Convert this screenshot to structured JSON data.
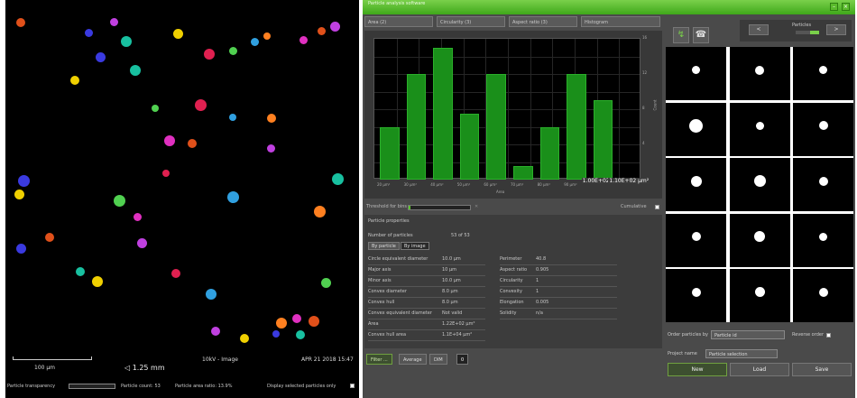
{
  "left_image": {
    "scale_label": "100 µm",
    "zoom": "◁ 1.25 mm",
    "magnification": "10kV - Image",
    "date": "APR 21 2018 15:47",
    "transparency_label": "Particle transparency",
    "particle_count": "Particle count: 53",
    "area_ratio": "Particle area ratio: 13.9%",
    "display_selected": "Display selected particles only",
    "particle_colors": [
      "#e0501a",
      "#c040e0",
      "#3a3ae0",
      "#18c0a0",
      "#f0d000",
      "#e02050",
      "#50d050",
      "#30a0e0",
      "#ff8020",
      "#e030c0"
    ]
  },
  "app": {
    "title": "Particle analysis software",
    "minimize": "–",
    "close": "×"
  },
  "dropdowns": [
    "Area (2)",
    "Circularity (3)",
    "Aspect ratio (3)",
    "Histogram"
  ],
  "chart_data": {
    "type": "bar",
    "categories": [
      "20 µm²",
      "30 µm²",
      "40 µm²",
      "50 µm²",
      "60 µm²",
      "70 µm²",
      "80 µm²",
      "90 µm²",
      "1.00E+02 µm²",
      "1.10E+02 µm²"
    ],
    "values": [
      6,
      12,
      15,
      7.5,
      12,
      1.5,
      6,
      12,
      9,
      0
    ],
    "ylim": [
      0,
      16
    ],
    "yticks": [
      4,
      8,
      12,
      16
    ],
    "xlabel": "Area",
    "ylabel": "Count",
    "highlighted_labels": [
      "1.00E+02 µm²",
      "1.10E+02 µm²"
    ],
    "grid": true
  },
  "toolbar": {
    "threshold_label": "Threshold for bins",
    "progress": 0.03,
    "cumulative_label": "Cumulative"
  },
  "particle_info": {
    "title": "Particle properties",
    "count_label": "Number of particles",
    "count_value": "53 of 53",
    "tabs": [
      "By particle",
      "By image"
    ],
    "left_rows": [
      {
        "label": "Circle equivalent diameter",
        "value": "10.0 µm"
      },
      {
        "label": "Major axis",
        "value": "10 µm"
      },
      {
        "label": "Minor axis",
        "value": "10.0 µm"
      },
      {
        "label": "Convex diameter",
        "value": "8.0 µm"
      },
      {
        "label": "Convex hull",
        "value": "8.0 µm"
      },
      {
        "label": "Convex equivalent diameter",
        "value": "Not valid"
      },
      {
        "label": "Area",
        "value": "1.22E+02 µm²"
      },
      {
        "label": "Convex hull area",
        "value": "1.1E+04 µm²"
      }
    ],
    "right_rows": [
      {
        "label": "Perimeter",
        "value": "40.8"
      },
      {
        "label": "Aspect ratio",
        "value": "0.905"
      },
      {
        "label": "Circularity",
        "value": "1"
      },
      {
        "label": "Convexity",
        "value": "1"
      },
      {
        "label": "Elongation",
        "value": "0.005"
      },
      {
        "label": "Solidity",
        "value": "n/a"
      }
    ]
  },
  "bottom_buttons": {
    "filter": "Filter ...",
    "average": "Average",
    "dim": "DIM",
    "value": "0"
  },
  "thumbnails": {
    "dot_sizes": [
      9,
      10,
      9,
      15,
      9,
      10,
      12,
      13,
      10,
      10,
      12,
      9,
      10,
      11,
      10
    ]
  },
  "right_panel": {
    "nav_prev": "<",
    "nav_next": ">",
    "nav_label": "Particles",
    "icon_1": "↯",
    "icon_2": "☎",
    "order_label": "Order particles by",
    "order_value": "Particle id",
    "reverse_label": "Reverse order",
    "project_label": "Project name",
    "project_value": "Particle selection",
    "new": "New",
    "load": "Load",
    "save": "Save"
  }
}
